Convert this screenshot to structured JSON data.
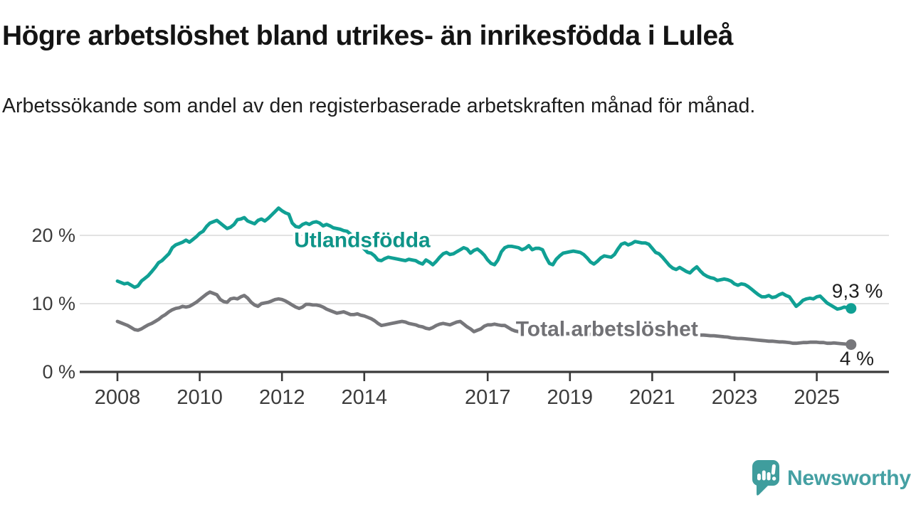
{
  "header": {
    "title": "Högre arbetslöshet bland utrikes- än inrikesfödda i Luleå",
    "subtitle": "Arbetssökande som andel av den registerbaserade arbetskraften månad för månad."
  },
  "chart_data": {
    "type": "line",
    "title": "Högre arbetslöshet bland utrikes- än inrikesfödda i Luleå",
    "subtitle": "Arbetssökande som andel av den registerbaserade arbetskraften månad för månad.",
    "grid": "horizontal",
    "grid_color": "#d9d9d9",
    "axis_color": "#3a3a3a",
    "xlim": [
      2007.1,
      2026.8
    ],
    "ylim": [
      0,
      24.8
    ],
    "x_unit": "year",
    "y_unit": "percent",
    "x_ticks": [
      {
        "v": 2008,
        "label": "2008"
      },
      {
        "v": 2010,
        "label": "2010"
      },
      {
        "v": 2012,
        "label": "2012"
      },
      {
        "v": 2014,
        "label": "2014"
      },
      {
        "v": 2017,
        "label": "2017"
      },
      {
        "v": 2019,
        "label": "2019"
      },
      {
        "v": 2021,
        "label": "2021"
      },
      {
        "v": 2023,
        "label": "2023"
      },
      {
        "v": 2025,
        "label": "2025"
      }
    ],
    "y_ticks": [
      {
        "v": 0,
        "label": "0 %"
      },
      {
        "v": 10,
        "label": "10 %"
      },
      {
        "v": 20,
        "label": "20 %"
      }
    ],
    "series": [
      {
        "id": "utlandsfodda",
        "name": "Utlandsfödda",
        "color": "#10A094",
        "label_color": "#0E9488",
        "label_pos": [
          2013.95,
          19.3
        ],
        "end_label": "9,3 %",
        "end_value": 9.3,
        "end_label_offset": [
          -27,
          -15
        ],
        "points": {
          "start": 2008.0,
          "step_months": 1,
          "values": [
            13.3,
            13.1,
            12.9,
            13.0,
            12.7,
            12.4,
            12.6,
            13.3,
            13.7,
            14.1,
            14.7,
            15.3,
            16.0,
            16.3,
            16.8,
            17.3,
            18.2,
            18.6,
            18.8,
            19.0,
            19.3,
            19.0,
            19.4,
            19.8,
            20.3,
            20.6,
            21.3,
            21.8,
            22.0,
            22.2,
            21.8,
            21.4,
            21.0,
            21.2,
            21.6,
            22.3,
            22.4,
            22.6,
            22.1,
            21.9,
            21.7,
            22.2,
            22.4,
            22.1,
            22.5,
            23.0,
            23.5,
            24.0,
            23.6,
            23.3,
            23.1,
            21.8,
            21.3,
            21.2,
            21.6,
            21.8,
            21.6,
            21.9,
            22.0,
            21.8,
            21.4,
            21.6,
            21.4,
            21.1,
            21.0,
            20.9,
            20.7,
            20.6,
            20.2,
            19.7,
            19.2,
            18.6,
            18.0,
            17.5,
            17.4,
            17.0,
            16.4,
            16.3,
            16.6,
            16.8,
            16.7,
            16.6,
            16.5,
            16.4,
            16.3,
            16.5,
            16.4,
            16.3,
            16.0,
            15.8,
            16.4,
            16.1,
            15.7,
            16.2,
            16.8,
            17.3,
            17.5,
            17.2,
            17.3,
            17.6,
            17.9,
            18.2,
            18.0,
            17.4,
            17.8,
            18.0,
            17.6,
            17.1,
            16.4,
            15.9,
            15.7,
            16.4,
            17.6,
            18.2,
            18.4,
            18.4,
            18.3,
            18.2,
            17.9,
            18.1,
            18.5,
            17.9,
            18.1,
            18.1,
            17.9,
            16.8,
            15.9,
            15.7,
            16.5,
            17.0,
            17.4,
            17.5,
            17.6,
            17.7,
            17.6,
            17.5,
            17.2,
            16.7,
            16.1,
            15.8,
            16.2,
            16.7,
            17.0,
            16.9,
            16.8,
            17.2,
            18.0,
            18.7,
            18.9,
            18.6,
            18.8,
            19.1,
            19.0,
            18.9,
            18.9,
            18.7,
            18.1,
            17.5,
            17.3,
            16.8,
            16.2,
            15.6,
            15.2,
            15.0,
            15.3,
            15.0,
            14.7,
            14.5,
            15.0,
            15.4,
            14.8,
            14.3,
            14.0,
            13.8,
            13.7,
            13.4,
            13.5,
            13.6,
            13.5,
            13.3,
            12.9,
            12.7,
            12.9,
            12.8,
            12.5,
            12.1,
            11.7,
            11.3,
            11.0,
            11.0,
            11.2,
            10.9,
            11.0,
            11.3,
            11.5,
            11.2,
            11.0,
            10.3,
            9.6,
            10.0,
            10.5,
            10.7,
            10.8,
            10.7,
            11.0,
            11.1,
            10.6,
            10.1,
            9.8,
            9.5,
            9.2,
            9.3,
            9.5,
            9.4,
            9.3
          ]
        }
      },
      {
        "id": "total",
        "name": "Total arbetslöshet",
        "color": "#77777B",
        "label_color": "#717175",
        "label_pos": [
          2019.9,
          6.3
        ],
        "end_label": "4 %",
        "end_value": 4.0,
        "end_label_offset": [
          -16,
          29
        ],
        "points": {
          "start": 2008.0,
          "step_months": 1,
          "values": [
            7.4,
            7.2,
            7.0,
            6.8,
            6.5,
            6.2,
            6.1,
            6.3,
            6.6,
            6.9,
            7.1,
            7.4,
            7.7,
            8.1,
            8.4,
            8.8,
            9.1,
            9.3,
            9.4,
            9.6,
            9.5,
            9.6,
            9.9,
            10.2,
            10.6,
            11.0,
            11.4,
            11.7,
            11.5,
            11.3,
            10.6,
            10.3,
            10.2,
            10.7,
            10.8,
            10.7,
            11.0,
            11.2,
            10.8,
            10.2,
            9.8,
            9.6,
            10.0,
            10.1,
            10.2,
            10.4,
            10.6,
            10.7,
            10.6,
            10.4,
            10.1,
            9.8,
            9.5,
            9.3,
            9.5,
            9.9,
            9.9,
            9.8,
            9.8,
            9.7,
            9.5,
            9.2,
            9.0,
            8.8,
            8.6,
            8.7,
            8.8,
            8.6,
            8.4,
            8.4,
            8.5,
            8.3,
            8.2,
            8.0,
            7.8,
            7.5,
            7.1,
            6.8,
            6.9,
            7.0,
            7.1,
            7.2,
            7.3,
            7.4,
            7.3,
            7.1,
            7.0,
            6.9,
            6.7,
            6.6,
            6.4,
            6.3,
            6.5,
            6.8,
            7.0,
            7.1,
            7.0,
            6.9,
            7.1,
            7.3,
            7.4,
            7.0,
            6.6,
            6.3,
            5.9,
            6.1,
            6.3,
            6.7,
            6.9,
            6.9,
            7.0,
            6.9,
            6.8,
            6.8,
            6.5,
            6.2,
            6.0,
            5.9,
            5.8,
            5.8,
            5.8,
            5.8,
            5.7,
            5.7,
            5.7,
            5.6,
            5.6,
            5.6,
            5.6,
            5.6,
            5.6,
            5.6,
            5.6,
            5.5,
            5.5,
            5.5,
            5.5,
            5.5,
            5.5,
            5.5,
            5.5,
            5.6,
            5.7,
            5.7,
            5.8,
            5.9,
            6.1,
            6.3,
            6.3,
            6.3,
            6.2,
            6.2,
            6.1,
            6.0,
            6.0,
            5.9,
            5.9,
            5.8,
            5.8,
            5.7,
            5.7,
            5.6,
            5.6,
            5.5,
            5.5,
            5.5,
            5.5,
            5.5,
            5.5,
            5.45,
            5.4,
            5.4,
            5.35,
            5.3,
            5.3,
            5.25,
            5.2,
            5.15,
            5.1,
            5.0,
            4.95,
            4.9,
            4.9,
            4.85,
            4.8,
            4.75,
            4.7,
            4.65,
            4.6,
            4.55,
            4.5,
            4.5,
            4.45,
            4.4,
            4.4,
            4.35,
            4.3,
            4.2,
            4.2,
            4.25,
            4.3,
            4.3,
            4.35,
            4.35,
            4.35,
            4.3,
            4.3,
            4.2,
            4.2,
            4.25,
            4.2,
            4.15,
            4.1,
            4.05,
            4.0
          ]
        }
      }
    ]
  },
  "branding": {
    "name": "Newsworthy",
    "color": "#45A0A3",
    "icon": "newsworthy-speech-bubble-bar-chart-icon"
  }
}
